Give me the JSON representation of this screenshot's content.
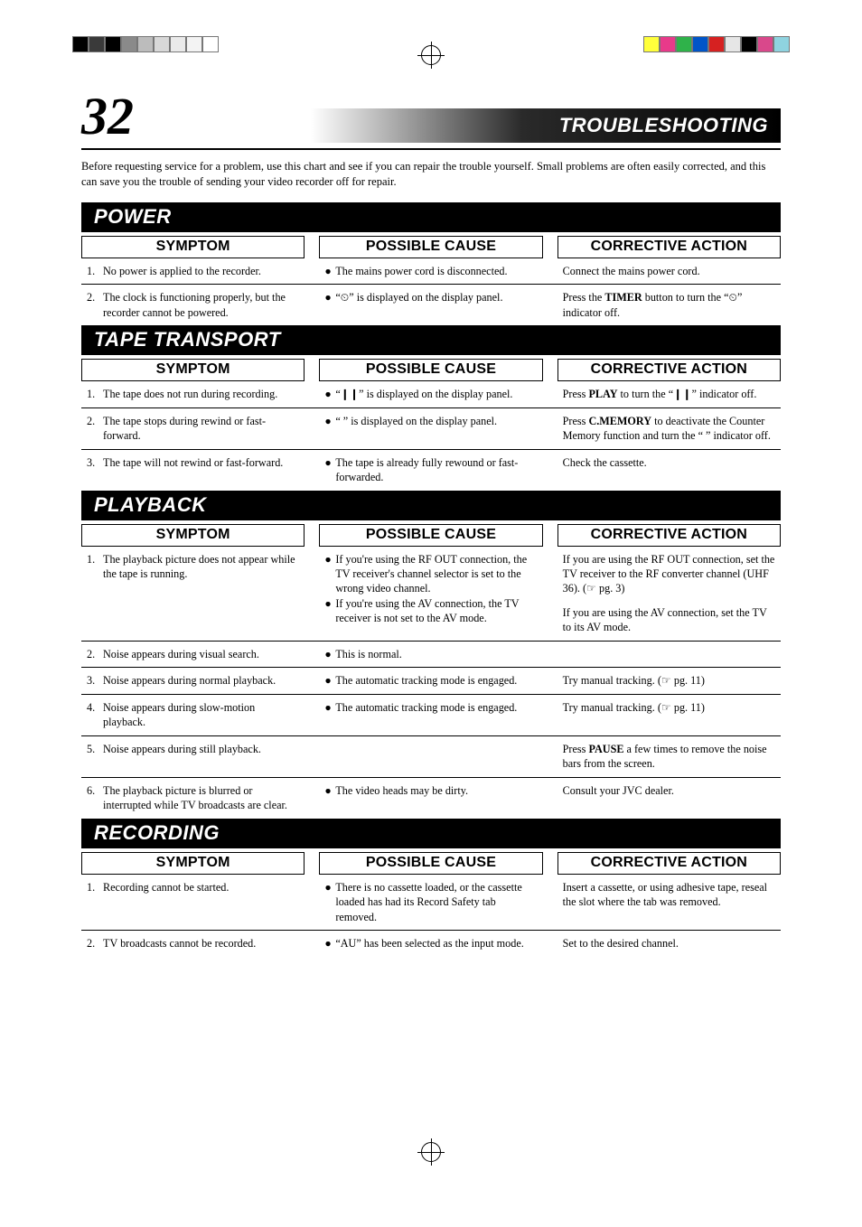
{
  "page_number": "32",
  "section_title": "TROUBLESHOOTING",
  "intro_text": "Before requesting service for a problem, use this chart and see if you can repair the trouble yourself. Small problems are often easily corrected, and this can save you the trouble of sending your video recorder off for repair.",
  "column_headers": {
    "symptom": "SYMPTOM",
    "cause": "POSSIBLE CAUSE",
    "action": "CORRECTIVE ACTION"
  },
  "reg_colors": {
    "left": [
      "#000000",
      "#3a3a3a",
      "#000000",
      "#8a8a8a",
      "#bcbcbc",
      "#d8d8d8",
      "#eaeaea",
      "#f3f3f3",
      "#ffffff"
    ],
    "right": [
      "#ffff3b",
      "#e83a8a",
      "#2fb24a",
      "#0055c8",
      "#d62121",
      "#e6e6e6",
      "#000000",
      "#d9488b",
      "#8fd3e0"
    ]
  },
  "sections": [
    {
      "title": "POWER",
      "rows": [
        {
          "num": "1.",
          "symptom": "No power is applied to the recorder.",
          "cause": "The mains power cord is disconnected.",
          "action_parts": [
            {
              "t": "Connect the mains power cord."
            }
          ]
        },
        {
          "num": "2.",
          "symptom": "The clock is functioning properly, but the recorder cannot be powered.",
          "cause": "“⏲” is displayed on the display panel.",
          "action_parts": [
            {
              "t": "Press the "
            },
            {
              "b": "TIMER"
            },
            {
              "t": " button to turn the “⏲” indicator off."
            }
          ]
        }
      ]
    },
    {
      "title": "TAPE TRANSPORT",
      "rows": [
        {
          "num": "1.",
          "symptom": "The tape does not run during recording.",
          "cause": "“❙❙” is displayed on the display panel.",
          "action_parts": [
            {
              "t": "Press "
            },
            {
              "b": "PLAY"
            },
            {
              "t": " to turn the “❙❙” indicator off."
            }
          ]
        },
        {
          "num": "2.",
          "symptom": "The tape stops during rewind or fast-forward.",
          "cause": "“   ” is displayed on the display panel.",
          "action_parts": [
            {
              "t": "Press "
            },
            {
              "b": "C.MEMORY"
            },
            {
              "t": " to deactivate the Counter Memory function and turn the “   ” indicator off."
            }
          ]
        },
        {
          "num": "3.",
          "symptom": "The tape will not rewind or fast-forward.",
          "cause": "The tape is already fully rewound or fast-forwarded.",
          "action_parts": [
            {
              "t": "Check the cassette."
            }
          ]
        }
      ]
    },
    {
      "title": "PLAYBACK",
      "rows": [
        {
          "num": "1.",
          "symptom": "The playback picture does not appear while the tape is running.",
          "cause_multi": [
            "If you're using the RF OUT connection, the TV receiver's channel selector is set to the wrong video channel.",
            "If you're using the AV connection, the TV receiver is not set to the AV mode."
          ],
          "action_multi_plain": [
            "If you are using the RF OUT connection, set the TV receiver to the RF converter channel (UHF 36). (☞ pg. 3)",
            "If you are using the AV connection, set the TV to its AV mode."
          ]
        },
        {
          "num": "2.",
          "symptom": "Noise appears during visual search.",
          "cause": "This is normal.",
          "action_parts": []
        },
        {
          "num": "3.",
          "symptom": "Noise appears during normal playback.",
          "cause": "The automatic tracking mode is engaged.",
          "action_parts": [
            {
              "t": "Try manual tracking. (☞ pg. 11)"
            }
          ]
        },
        {
          "num": "4.",
          "symptom": "Noise appears during slow-motion playback.",
          "cause": "The automatic tracking mode is engaged.",
          "action_parts": [
            {
              "t": "Try manual tracking. (☞ pg. 11)"
            }
          ]
        },
        {
          "num": "5.",
          "symptom": "Noise appears during still playback.",
          "cause": "",
          "action_parts": [
            {
              "t": "Press "
            },
            {
              "b": "PAUSE"
            },
            {
              "t": " a few times to remove the noise bars from the screen."
            }
          ]
        },
        {
          "num": "6.",
          "symptom": "The playback picture is blurred or interrupted while TV broadcasts are clear.",
          "cause": "The video heads may be dirty.",
          "action_parts": [
            {
              "t": "Consult your JVC dealer."
            }
          ]
        }
      ]
    },
    {
      "title": "RECORDING",
      "rows": [
        {
          "num": "1.",
          "symptom": "Recording cannot be started.",
          "cause": "There is no cassette loaded, or the cassette loaded has had its Record Safety tab removed.",
          "action_parts": [
            {
              "t": "Insert a cassette, or using adhesive tape, reseal the slot where the tab was removed."
            }
          ]
        },
        {
          "num": "2.",
          "symptom": "TV broadcasts cannot be recorded.",
          "cause": "“AU” has been selected as the input mode.",
          "action_parts": [
            {
              "t": "Set to the desired channel."
            }
          ]
        }
      ]
    }
  ]
}
